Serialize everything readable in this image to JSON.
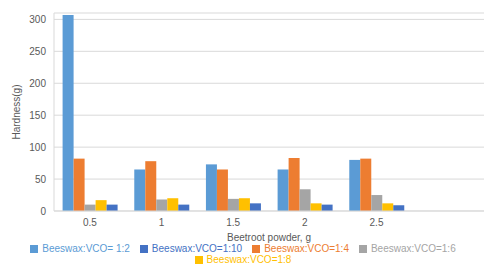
{
  "chart_data": {
    "type": "bar",
    "x_label": "Beetroot powder, g",
    "y_label": "Hardness(g)",
    "categories": [
      "0.5",
      "1",
      "1.5",
      "2",
      "2.5",
      null
    ],
    "series": [
      {
        "name": "Beeswax:VCO= 1:2",
        "color": "#5b9bd5",
        "values": [
          307,
          65,
          73,
          65,
          80,
          null
        ]
      },
      {
        "name": "Beeswax:VCO=1:4",
        "color": "#ed7d31",
        "values": [
          82,
          78,
          65,
          83,
          82,
          null
        ]
      },
      {
        "name": "Beeswax:VCO=1:6",
        "color": "#a5a5a5",
        "values": [
          10,
          18,
          19,
          34,
          25,
          null
        ]
      },
      {
        "name": "Beeswax:VCO=1:8",
        "color": "#ffc000",
        "values": [
          17,
          20,
          20,
          12,
          12,
          null
        ]
      },
      {
        "name": "Beeswax:VCO=1:10",
        "color": "#4472c4",
        "values": [
          10,
          10,
          12,
          10,
          9,
          null
        ]
      }
    ],
    "ylim": [
      0,
      310
    ],
    "yticks": [
      0,
      50,
      100,
      150,
      200,
      250,
      300
    ],
    "grid": true,
    "legend": "bottom"
  }
}
